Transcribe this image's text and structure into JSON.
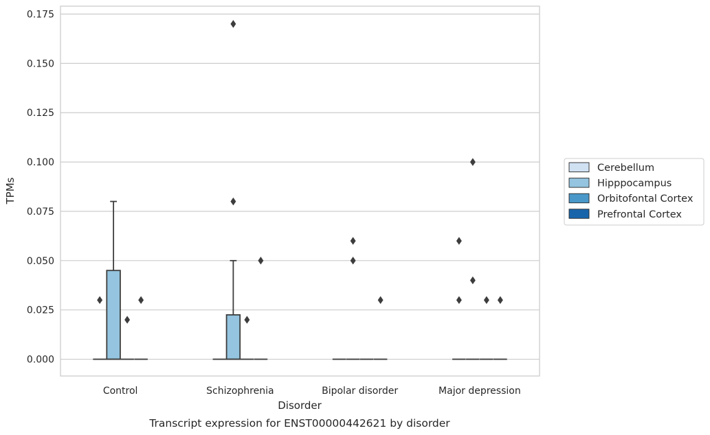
{
  "chart_data": {
    "type": "box",
    "caption": "Transcript expression for ENST00000442621 by disorder",
    "xlabel": "Disorder",
    "ylabel": "TPMs",
    "ylim": [
      -0.0085,
      0.179
    ],
    "yticks": [
      0.0,
      0.025,
      0.05,
      0.075,
      0.1,
      0.125,
      0.15,
      0.175
    ],
    "ytick_labels": [
      "0.000",
      "0.025",
      "0.050",
      "0.075",
      "0.100",
      "0.125",
      "0.150",
      "0.175"
    ],
    "grid": true,
    "legend_position": "right",
    "categories": [
      "Control",
      "Schizophrenia",
      "Bipolar disorder",
      "Major depression"
    ],
    "series": [
      {
        "name": "Cerebellum",
        "color": "#d0e1f2",
        "boxes": [
          {
            "q1": 0,
            "median": 0,
            "q3": 0,
            "whisker_low": 0,
            "whisker_high": 0,
            "outliers": [
              0.03
            ]
          },
          {
            "q1": 0,
            "median": 0,
            "q3": 0,
            "whisker_low": 0,
            "whisker_high": 0,
            "outliers": []
          },
          {
            "q1": 0,
            "median": 0,
            "q3": 0,
            "whisker_low": 0,
            "whisker_high": 0,
            "outliers": []
          },
          {
            "q1": 0,
            "median": 0,
            "q3": 0,
            "whisker_low": 0,
            "whisker_high": 0,
            "outliers": [
              0.06,
              0.03
            ]
          }
        ]
      },
      {
        "name": "Hipppocampus",
        "color": "#94c4df",
        "boxes": [
          {
            "q1": 0,
            "median": 0,
            "q3": 0.045,
            "whisker_low": 0,
            "whisker_high": 0.08,
            "outliers": []
          },
          {
            "q1": 0,
            "median": 0,
            "q3": 0.0225,
            "whisker_low": 0,
            "whisker_high": 0.05,
            "outliers": [
              0.17,
              0.08
            ]
          },
          {
            "q1": 0,
            "median": 0,
            "q3": 0,
            "whisker_low": 0,
            "whisker_high": 0,
            "outliers": [
              0.06,
              0.05
            ]
          },
          {
            "q1": 0,
            "median": 0,
            "q3": 0,
            "whisker_low": 0,
            "whisker_high": 0,
            "outliers": [
              0.1,
              0.04
            ]
          }
        ]
      },
      {
        "name": "Orbitofontal Cortex",
        "color": "#4a98c9",
        "boxes": [
          {
            "q1": 0,
            "median": 0,
            "q3": 0,
            "whisker_low": 0,
            "whisker_high": 0,
            "outliers": [
              0.02
            ]
          },
          {
            "q1": 0,
            "median": 0,
            "q3": 0,
            "whisker_low": 0,
            "whisker_high": 0,
            "outliers": [
              0.02
            ]
          },
          {
            "q1": 0,
            "median": 0,
            "q3": 0,
            "whisker_low": 0,
            "whisker_high": 0,
            "outliers": []
          },
          {
            "q1": 0,
            "median": 0,
            "q3": 0,
            "whisker_low": 0,
            "whisker_high": 0,
            "outliers": [
              0.03
            ]
          }
        ]
      },
      {
        "name": "Prefrontal Cortex",
        "color": "#1764ab",
        "boxes": [
          {
            "q1": 0,
            "median": 0,
            "q3": 0,
            "whisker_low": 0,
            "whisker_high": 0,
            "outliers": [
              0.03
            ]
          },
          {
            "q1": 0,
            "median": 0,
            "q3": 0,
            "whisker_low": 0,
            "whisker_high": 0,
            "outliers": [
              0.05
            ]
          },
          {
            "q1": 0,
            "median": 0,
            "q3": 0,
            "whisker_low": 0,
            "whisker_high": 0,
            "outliers": [
              0.03
            ]
          },
          {
            "q1": 0,
            "median": 0,
            "q3": 0,
            "whisker_low": 0,
            "whisker_high": 0,
            "outliers": [
              0.03
            ]
          }
        ]
      }
    ]
  }
}
